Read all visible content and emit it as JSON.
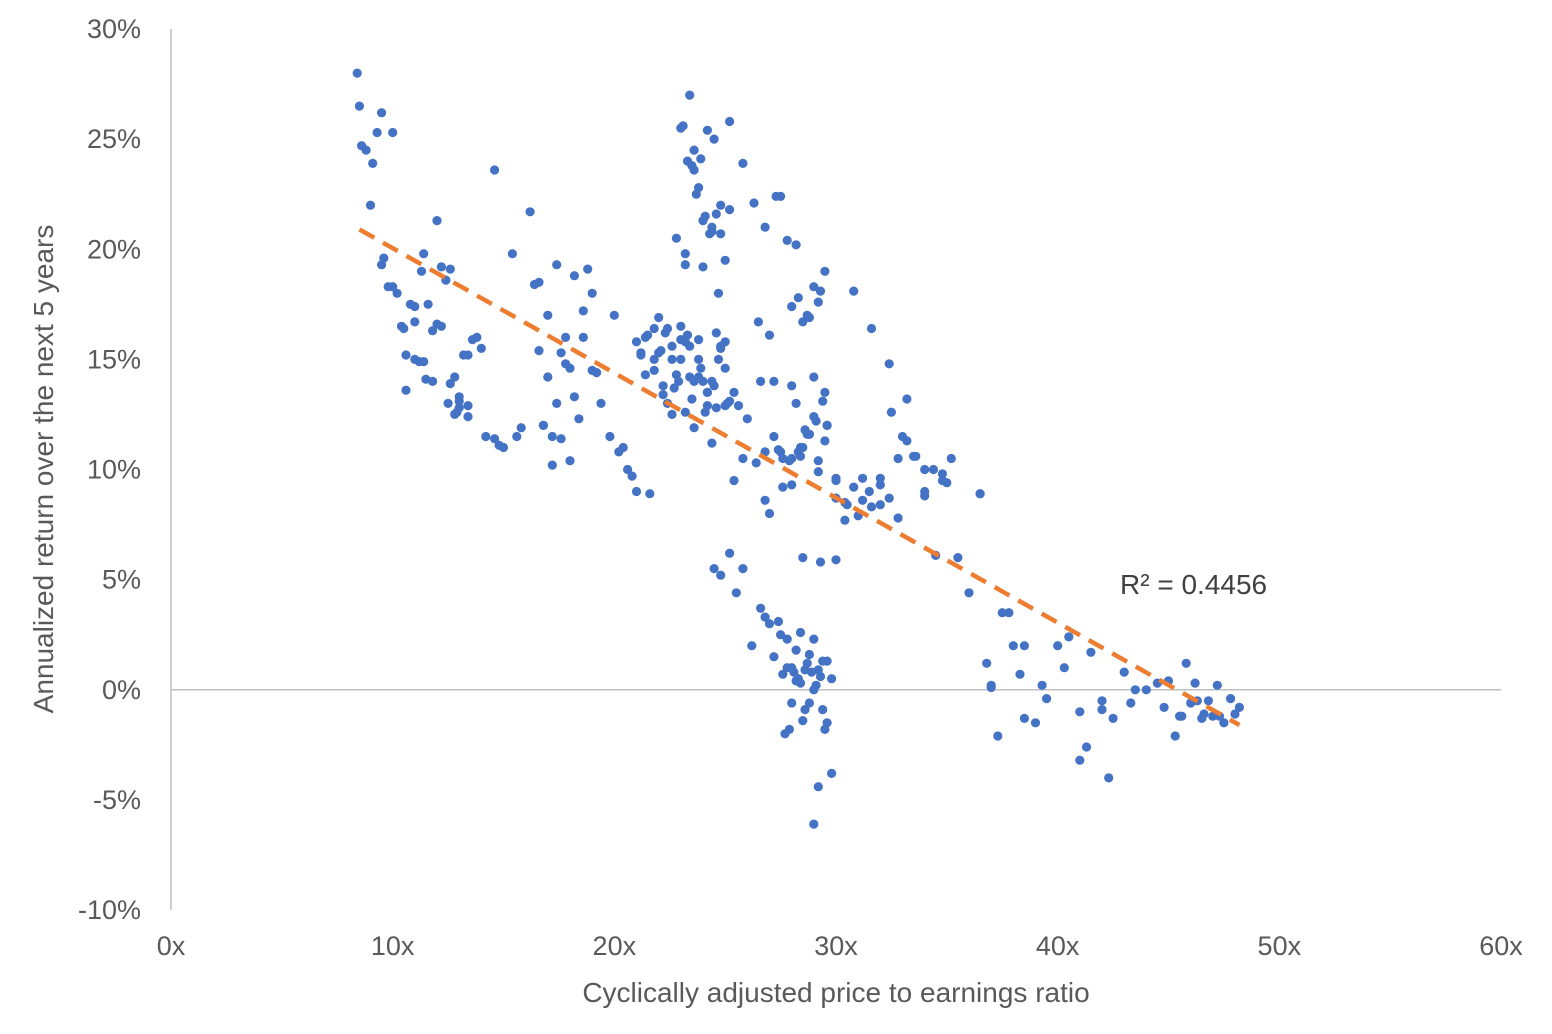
{
  "chart_data": {
    "type": "scatter",
    "title": "",
    "xlabel": "Cyclically adjusted price to earnings ratio",
    "ylabel": "Annualized return over the next 5 years",
    "xlim": [
      0,
      60
    ],
    "ylim": [
      -10,
      30
    ],
    "x_ticks": [
      0,
      10,
      20,
      30,
      40,
      50,
      60
    ],
    "x_tick_labels": [
      "0x",
      "10x",
      "20x",
      "30x",
      "40x",
      "50x",
      "60x"
    ],
    "y_ticks": [
      -10,
      -5,
      0,
      5,
      10,
      15,
      20,
      25,
      30
    ],
    "y_tick_labels": [
      "-10%",
      "-5%",
      "0%",
      "5%",
      "10%",
      "15%",
      "20%",
      "25%",
      "30%"
    ],
    "grid": false,
    "legend": "none",
    "point_color": "#4472C4",
    "trendline_color": "#ED7D31",
    "axis_color": "#BFBFBF",
    "annotation": "R² = 0.4456",
    "trendline": {
      "x": [
        8.5,
        48.2
      ],
      "y": [
        20.9,
        -1.6
      ]
    },
    "series": [
      {
        "x": [
          8.4,
          8.5,
          8.6,
          8.8,
          9.0,
          9.1,
          9.3,
          9.5,
          9.6,
          9.8,
          10.0,
          10.2,
          10.4,
          10.6,
          10.8,
          11.0,
          11.2,
          11.4,
          11.6,
          11.8,
          12.0,
          12.2,
          12.4,
          12.6,
          12.8,
          13.0,
          13.2,
          13.4,
          13.6,
          13.8,
          14.0,
          14.2,
          14.6,
          15.0,
          15.4,
          15.8,
          16.2,
          16.6,
          17.0,
          17.4,
          17.8,
          18.2,
          18.6,
          19.0,
          19.4,
          9.5,
          10.0,
          10.6,
          11.0,
          11.4,
          11.8,
          12.2,
          12.6,
          13.0,
          13.4,
          16.4,
          16.8,
          17.2,
          17.6,
          18.0,
          18.4,
          18.8,
          19.2,
          16.6,
          17.0,
          17.4,
          17.8,
          18.2,
          18.6,
          19.0,
          16.8,
          17.2,
          17.6,
          18.0,
          11.3,
          12.0,
          12.5,
          12.9,
          13.4,
          10.5,
          11.0,
          11.5,
          12.8,
          13.0,
          14.6,
          14.8,
          15.6
        ],
        "y": [
          28.0,
          26.5,
          24.7,
          24.5,
          22.0,
          23.9,
          25.3,
          26.2,
          19.6,
          18.3,
          25.3,
          18.0,
          16.5,
          15.2,
          17.5,
          16.7,
          14.9,
          19.8,
          17.5,
          16.3,
          21.3,
          19.2,
          18.6,
          19.1,
          14.2,
          13.3,
          15.2,
          12.9,
          15.9,
          16.0,
          15.5,
          11.5,
          23.6,
          11.0,
          19.8,
          11.9,
          21.7,
          18.5,
          17.0,
          19.3,
          16.0,
          18.8,
          17.2,
          18.0,
          13.0,
          19.3,
          18.3,
          13.6,
          17.4,
          14.9,
          14.0,
          16.5,
          13.9,
          12.8,
          15.2,
          18.4,
          12.0,
          11.5,
          15.3,
          14.6,
          12.3,
          19.1,
          14.4,
          15.4,
          14.2,
          13.0,
          14.8,
          13.3,
          16.0,
          14.5,
          12.0,
          10.2,
          11.4,
          10.4,
          19.0,
          16.6,
          13.0,
          12.6,
          12.4,
          16.4,
          15.0,
          14.1,
          12.5,
          13.1,
          11.4,
          11.1,
          11.5
        ]
      },
      {
        "x": [
          19.8,
          20.2,
          20.6,
          21.0,
          21.4,
          21.8,
          22.2,
          22.6,
          23.0,
          23.4,
          23.8,
          24.2,
          24.6,
          25.0,
          25.4,
          25.8,
          20.0,
          20.4,
          20.8,
          21.2,
          21.6,
          22.0,
          22.4,
          22.8,
          23.2,
          23.6,
          24.0,
          24.4,
          24.8,
          25.2,
          25.6,
          26.0,
          26.4,
          26.8,
          27.2,
          27.6,
          28.0,
          28.4,
          28.8,
          29.2,
          29.6,
          30.0,
          30.4,
          30.8,
          31.2,
          31.6,
          32.0,
          32.4,
          32.8,
          33.2,
          33.6,
          34.0,
          34.4,
          34.8,
          35.2,
          21.2,
          21.5,
          21.8,
          22.1,
          22.4,
          22.7,
          23.0,
          23.3,
          23.6,
          23.9,
          24.2,
          24.5,
          24.8,
          25.1,
          22.0,
          22.3,
          22.6,
          22.9,
          23.2,
          23.5,
          23.8,
          24.1,
          24.4,
          24.7,
          25.0,
          21.0,
          21.4,
          21.8,
          22.2,
          22.6,
          23.0,
          23.4,
          23.8,
          24.2,
          24.6,
          25.0,
          25.4
        ],
        "y": [
          11.5,
          10.8,
          10.0,
          9.0,
          16.0,
          15.0,
          13.8,
          12.5,
          16.5,
          15.6,
          14.2,
          13.5,
          12.8,
          15.8,
          9.5,
          10.5,
          17.0,
          11.0,
          9.7,
          15.3,
          8.9,
          16.9,
          13.0,
          14.3,
          12.6,
          11.9,
          14.0,
          11.2,
          15.5,
          13.1,
          12.9,
          12.3,
          10.3,
          10.8,
          11.5,
          9.2,
          10.5,
          11.0,
          11.6,
          10.4,
          12.0,
          9.5,
          8.5,
          9.2,
          9.6,
          8.3,
          9.6,
          8.7,
          7.8,
          11.3,
          10.6,
          9.0,
          10.0,
          9.5,
          10.5,
          15.2,
          16.1,
          14.5,
          15.4,
          16.4,
          13.7,
          15.0,
          16.1,
          14.0,
          14.6,
          13.5,
          13.8,
          15.6,
          13.0,
          15.3,
          16.2,
          15.0,
          14.0,
          15.8,
          13.2,
          15.9,
          12.6,
          14.0,
          15.0,
          12.9,
          15.8,
          14.3,
          16.4,
          13.4,
          15.6,
          15.9,
          14.2,
          15.0,
          12.9,
          16.2,
          14.6,
          13.5
        ]
      },
      {
        "x": [
          22.8,
          23.0,
          23.2,
          23.4,
          23.6,
          23.8,
          24.0,
          24.2,
          24.4,
          24.6,
          24.8,
          25.0,
          25.2,
          23.1,
          23.3,
          23.5,
          23.7,
          23.9,
          24.1,
          24.3,
          24.5,
          24.7,
          23.2,
          23.6,
          24.0,
          24.4,
          24.8,
          25.2,
          25.8,
          26.3,
          26.8,
          27.3,
          27.8,
          28.3,
          28.8,
          29.3,
          27.0,
          27.5,
          28.0,
          28.5,
          29.0,
          29.5,
          28.2,
          28.7,
          29.2
        ],
        "y": [
          20.5,
          25.5,
          19.3,
          27.0,
          24.5,
          22.8,
          21.3,
          25.4,
          20.8,
          21.6,
          22.0,
          19.5,
          25.8,
          25.6,
          24.0,
          23.8,
          22.5,
          24.1,
          21.5,
          20.7,
          25.0,
          18.0,
          19.8,
          23.6,
          19.2,
          21.0,
          20.7,
          21.8,
          23.9,
          22.1,
          21.0,
          22.4,
          20.4,
          17.8,
          16.9,
          18.1,
          16.1,
          22.4,
          17.4,
          16.7,
          18.3,
          19.0,
          20.2,
          17.0,
          17.6
        ]
      },
      {
        "x": [
          26.5,
          27.0,
          27.5,
          28.0,
          28.5,
          29.0,
          29.5,
          30.0,
          30.5,
          31.0,
          31.5,
          32.0,
          32.5,
          33.0,
          33.5,
          34.0,
          34.5,
          35.0,
          35.5,
          36.0,
          36.5,
          26.8,
          27.6,
          28.4,
          29.2,
          30.0,
          30.8,
          31.6,
          32.4,
          33.2,
          34.0,
          34.8,
          27.2,
          28.0,
          28.8,
          29.6,
          30.4,
          31.2,
          32.0,
          32.8,
          28.2,
          28.6,
          29.0,
          29.4,
          27.9,
          28.3,
          28.7,
          29.1,
          29.5,
          26.6,
          27.4
        ],
        "y": [
          16.7,
          8.0,
          10.8,
          13.8,
          11.0,
          14.2,
          13.5,
          9.6,
          8.4,
          7.9,
          9.0,
          8.4,
          12.6,
          11.5,
          10.6,
          10.0,
          6.1,
          9.4,
          6.0,
          4.4,
          8.9,
          8.6,
          10.5,
          10.6,
          9.9,
          8.7,
          18.1,
          16.4,
          14.8,
          13.2,
          8.8,
          9.8,
          14.0,
          9.3,
          11.6,
          12.0,
          7.7,
          8.6,
          9.3,
          10.5,
          13.0,
          11.8,
          12.4,
          13.1,
          10.4,
          10.8,
          11.6,
          12.2,
          11.3,
          14.0,
          10.9
        ]
      },
      {
        "x": [
          24.5,
          24.8,
          25.2,
          25.5,
          25.8,
          26.2,
          26.6,
          27.0,
          27.4,
          27.8,
          28.2,
          28.6,
          29.0,
          29.4,
          29.8,
          26.8,
          27.2,
          27.6,
          28.0,
          28.4,
          28.8,
          29.2,
          29.6,
          27.5,
          27.8,
          28.1,
          28.4,
          28.7,
          29.0,
          29.3,
          29.6,
          27.9,
          28.2,
          28.5,
          28.8,
          29.1,
          29.4,
          27.7,
          28.0,
          28.3,
          28.6,
          28.9,
          29.2,
          29.5,
          29.8,
          30.0,
          28.5,
          29.3,
          29.0
        ],
        "y": [
          5.5,
          5.2,
          6.2,
          4.4,
          5.5,
          2.0,
          3.7,
          3.0,
          3.1,
          2.3,
          1.8,
          0.9,
          2.3,
          1.3,
          0.5,
          3.3,
          1.5,
          0.7,
          -0.6,
          0.3,
          1.6,
          0.9,
          -1.5,
          2.5,
          1.0,
          0.8,
          2.6,
          1.2,
          0.0,
          0.6,
          1.3,
          -1.8,
          0.4,
          -1.4,
          -0.6,
          0.2,
          -0.9,
          -2.0,
          1.0,
          0.5,
          -0.9,
          0.8,
          -4.4,
          -1.8,
          -3.8,
          5.9,
          6.0,
          5.8,
          -6.1
        ]
      },
      {
        "x": [
          36.5,
          37.0,
          37.5,
          38.0,
          38.5,
          39.0,
          39.5,
          40.0,
          40.5,
          41.0,
          41.5,
          42.0,
          42.5,
          43.0,
          43.5,
          44.0,
          44.5,
          45.0,
          45.5,
          46.0,
          46.5,
          47.0,
          47.5,
          48.0,
          36.8,
          37.3,
          37.8,
          38.3,
          39.3,
          40.3,
          41.3,
          42.3,
          43.3,
          44.8,
          45.3,
          45.8,
          46.3,
          46.8,
          47.3,
          47.8,
          48.2,
          37.0,
          38.5,
          41.0,
          42.0,
          45.6,
          46.2,
          46.6,
          47.2
        ],
        "y": [
          8.9,
          0.2,
          3.5,
          2.0,
          2.0,
          -1.5,
          -0.4,
          2.0,
          2.4,
          -3.2,
          1.7,
          -0.5,
          -1.3,
          0.8,
          0.0,
          0.0,
          0.3,
          0.4,
          -1.2,
          -0.6,
          -1.3,
          -1.2,
          -1.5,
          -1.1,
          1.2,
          -2.1,
          3.5,
          0.7,
          0.2,
          1.0,
          -2.6,
          -4.0,
          -0.6,
          -0.8,
          -2.1,
          1.2,
          -0.5,
          -0.5,
          -1.2,
          -0.4,
          -0.8,
          0.1,
          -1.3,
          -1.0,
          -0.9,
          -1.2,
          0.3,
          -1.1,
          0.2
        ]
      }
    ]
  }
}
